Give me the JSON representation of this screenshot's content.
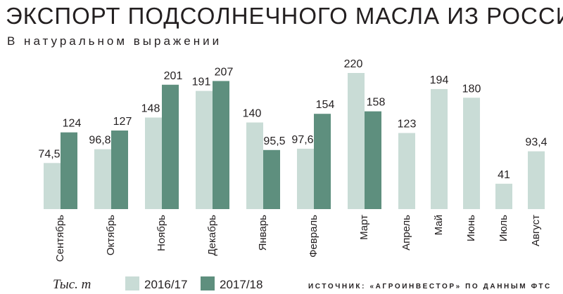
{
  "chart_data": {
    "type": "bar",
    "title": "ЭКСПОРТ ПОДСОЛНЕЧНОГО МАСЛА ИЗ РОССИИ",
    "subtitle": "В натуральном выражении",
    "unit_label": "Тыс. т",
    "source": "ИСТОЧНИК: «АГРОИНВЕСТОР» ПО ДАННЫМ ФТС",
    "categories": [
      "Сентябрь",
      "Октябрь",
      "Ноябрь",
      "Декабрь",
      "Январь",
      "Февраль",
      "Март",
      "Апрель",
      "Май",
      "Июнь",
      "Июль",
      "Август"
    ],
    "series": [
      {
        "name": "2016/17",
        "color": "#c9dcd6",
        "values": [
          74.5,
          96.8,
          148,
          191,
          140,
          97.6,
          220,
          123,
          194,
          180,
          41,
          93.4
        ],
        "value_labels": [
          "74,5",
          "96,8",
          "148",
          "191",
          "140",
          "97,6",
          "220",
          "123",
          "194",
          "180",
          "41",
          "93,4"
        ]
      },
      {
        "name": "2017/18",
        "color": "#5e8f7e",
        "values": [
          124,
          127,
          201,
          207,
          95.5,
          154,
          158,
          null,
          null,
          null,
          null,
          null
        ],
        "value_labels": [
          "124",
          "127",
          "201",
          "207",
          "95,5",
          "154",
          "158",
          null,
          null,
          null,
          null,
          null
        ]
      }
    ],
    "ylim": [
      0,
      220
    ]
  }
}
